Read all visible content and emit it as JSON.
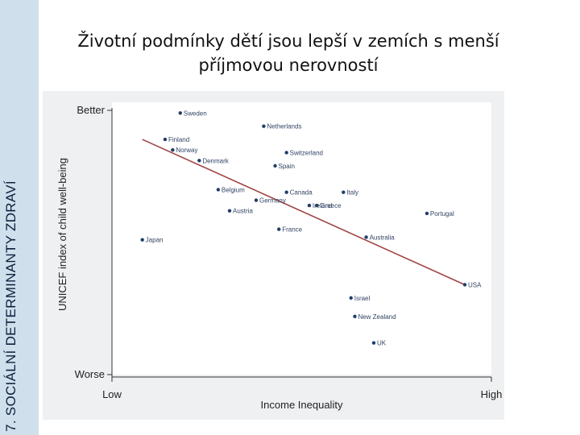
{
  "side_label": "7. SOCIÁLNÍ DETERMINANTY ZDRAVÍ",
  "title_line1": "Životní podmínky dětí jsou lepší v zemích s menší",
  "title_line2": "příjmovou nerovností",
  "colors": {
    "point": "#1f3e66",
    "trend": "#a14545",
    "axis": "#333333",
    "plot_bg": "#ffffff",
    "outer_bg": "#eef0f2",
    "band": "#cfe0ec"
  },
  "chart_data": {
    "type": "scatter",
    "xlabel": "Income Inequality",
    "ylabel": "UNICEF index of child well-being",
    "x_tick_labels": [
      "Low",
      "High"
    ],
    "y_tick_labels": [
      "Worse",
      "Better"
    ],
    "xlim": [
      0,
      1
    ],
    "ylim": [
      0,
      1
    ],
    "grid": false,
    "points": [
      {
        "label": "Sweden",
        "x": 0.18,
        "y": 0.99
      },
      {
        "label": "Netherlands",
        "x": 0.4,
        "y": 0.94
      },
      {
        "label": "Finland",
        "x": 0.14,
        "y": 0.89
      },
      {
        "label": "Norway",
        "x": 0.16,
        "y": 0.85
      },
      {
        "label": "Denmark",
        "x": 0.23,
        "y": 0.81
      },
      {
        "label": "Switzerland",
        "x": 0.46,
        "y": 0.84
      },
      {
        "label": "Spain",
        "x": 0.43,
        "y": 0.79
      },
      {
        "label": "Belgium",
        "x": 0.28,
        "y": 0.7
      },
      {
        "label": "Canada",
        "x": 0.46,
        "y": 0.69
      },
      {
        "label": "Italy",
        "x": 0.61,
        "y": 0.69
      },
      {
        "label": "Germany",
        "x": 0.38,
        "y": 0.66
      },
      {
        "label": "Ireland",
        "x": 0.52,
        "y": 0.64
      },
      {
        "label": "Greece",
        "x": 0.54,
        "y": 0.64
      },
      {
        "label": "Austria",
        "x": 0.31,
        "y": 0.62
      },
      {
        "label": "Portugal",
        "x": 0.83,
        "y": 0.61
      },
      {
        "label": "France",
        "x": 0.44,
        "y": 0.55
      },
      {
        "label": "Australia",
        "x": 0.67,
        "y": 0.52
      },
      {
        "label": "Japan",
        "x": 0.08,
        "y": 0.51
      },
      {
        "label": "USA",
        "x": 0.93,
        "y": 0.34
      },
      {
        "label": "Israel",
        "x": 0.63,
        "y": 0.29
      },
      {
        "label": "New Zealand",
        "x": 0.64,
        "y": 0.22
      },
      {
        "label": "UK",
        "x": 0.69,
        "y": 0.12
      }
    ],
    "trendline": {
      "x": [
        0.08,
        0.93
      ],
      "y": [
        0.89,
        0.34
      ]
    }
  }
}
